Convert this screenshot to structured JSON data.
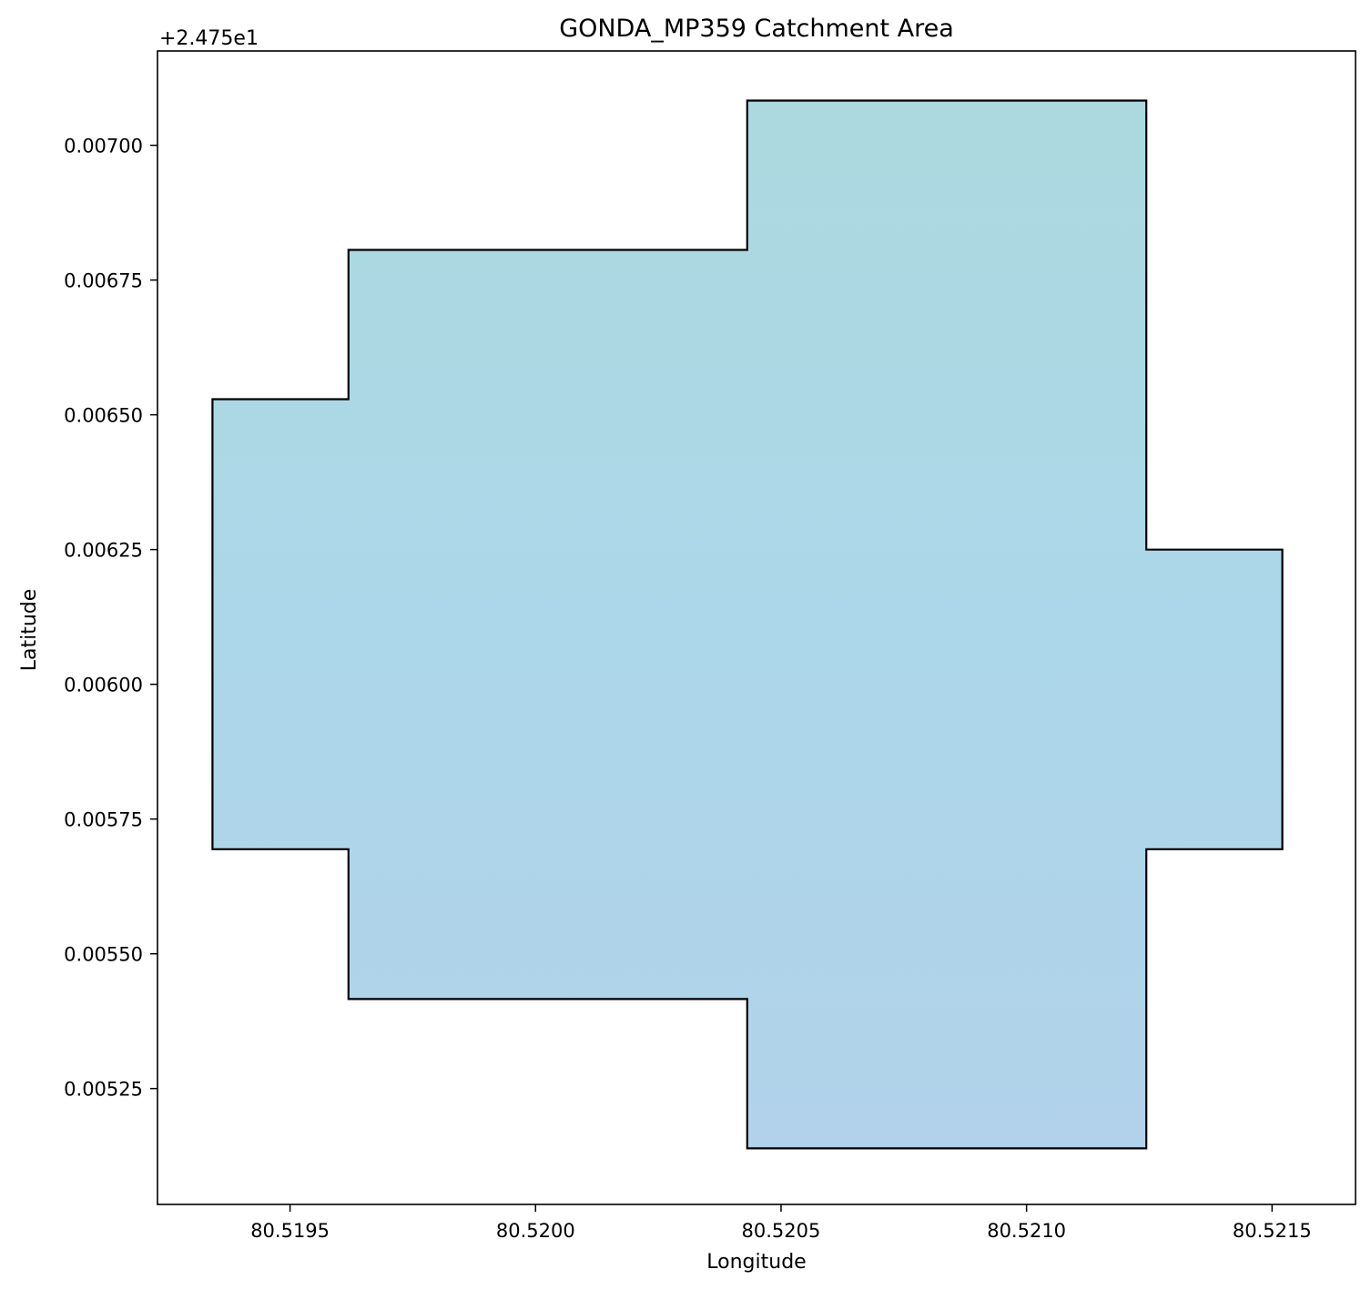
{
  "chart_data": {
    "type": "area",
    "title": "GONDA_MP359 Catchment Area",
    "xlabel": "Longitude",
    "ylabel": "Latitude",
    "y_offset_label": "+2.475e1",
    "y_offset": 24.75,
    "xlim": [
      80.51923,
      80.52167
    ],
    "ylim": [
      0.005035,
      0.007175
    ],
    "x_ticks": [
      80.5195,
      80.52,
      80.5205,
      80.521,
      80.5215
    ],
    "x_tick_labels": [
      "80.5195",
      "80.5200",
      "80.5205",
      "80.5210",
      "80.5215"
    ],
    "y_ticks": [
      0.00525,
      0.0055,
      0.00575,
      0.006,
      0.00625,
      0.0065,
      0.00675,
      0.007
    ],
    "y_tick_labels": [
      "0.00525",
      "0.00550",
      "0.00575",
      "0.00600",
      "0.00625",
      "0.00650",
      "0.00675",
      "0.00700"
    ],
    "polygon": {
      "fill_top": "#acd9df",
      "fill_mid": "#acd7ea",
      "fill_bottom": "#b1d2ea",
      "edge_color": "#000000",
      "vertices": [
        [
          80.519342,
          0.006529
        ],
        [
          80.519619,
          0.006529
        ],
        [
          80.519619,
          0.006806
        ],
        [
          80.520431,
          0.006806
        ],
        [
          80.520431,
          0.007083
        ],
        [
          80.521244,
          0.007083
        ],
        [
          80.521244,
          0.00625
        ],
        [
          80.521521,
          0.00625
        ],
        [
          80.521521,
          0.005694
        ],
        [
          80.521244,
          0.005694
        ],
        [
          80.521244,
          0.005139
        ],
        [
          80.520431,
          0.005139
        ],
        [
          80.520431,
          0.005416
        ],
        [
          80.519619,
          0.005416
        ],
        [
          80.519619,
          0.005694
        ],
        [
          80.519342,
          0.005694
        ]
      ]
    },
    "grid": false,
    "legend": "none"
  }
}
